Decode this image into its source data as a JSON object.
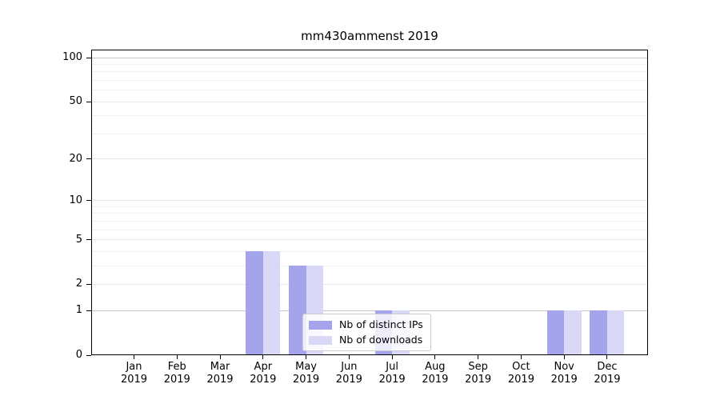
{
  "chart_data": {
    "type": "bar",
    "title": "mm430ammenst 2019",
    "categories": [
      "Jan",
      "Feb",
      "Mar",
      "Apr",
      "May",
      "Jun",
      "Jul",
      "Aug",
      "Sep",
      "Oct",
      "Nov",
      "Dec"
    ],
    "category_year": "2019",
    "series": [
      {
        "name": "Nb of distinct IPs",
        "color": "#a4a4ed",
        "values": [
          0,
          0,
          0,
          4,
          3,
          0,
          1,
          0,
          0,
          0,
          1,
          1
        ]
      },
      {
        "name": "Nb of downloads",
        "color": "#d9d9f7",
        "values": [
          0,
          0,
          0,
          4,
          3,
          0,
          1,
          0,
          0,
          0,
          1,
          1
        ]
      }
    ],
    "yscale": "log(1+x)",
    "ylim": [
      0,
      113
    ],
    "ytick_labels": [
      "0",
      "1",
      "2",
      "5",
      "10",
      "20",
      "50",
      "100"
    ],
    "ytick_values": [
      0,
      1,
      2,
      5,
      10,
      20,
      50,
      100
    ],
    "minor_gridlines": [
      3,
      4,
      6,
      7,
      8,
      9,
      30,
      40,
      60,
      70,
      80,
      90
    ],
    "emphasized_gridlines": [
      1,
      100
    ],
    "grid": true,
    "legend_position": "lower center",
    "colors": {
      "background": "#ffffff",
      "axis": "#000000",
      "grid_major": "#e7e7e7",
      "grid_minor": "#f1f1f1",
      "grid_emphasis": "#c5c5c5",
      "legend_border": "#cccccc"
    }
  }
}
